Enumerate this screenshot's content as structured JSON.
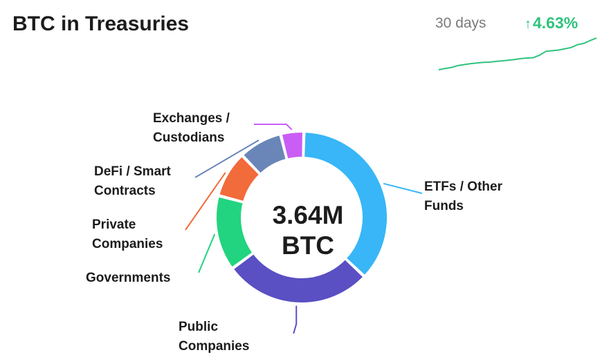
{
  "header": {
    "title": "BTC in Treasuries",
    "period": "30 days",
    "change_arrow": "↑",
    "change_value": "4.63%"
  },
  "colors": {
    "positive": "#2fc27d"
  },
  "sparkline": {
    "values": [
      0,
      0.04,
      0.07,
      0.13,
      0.16,
      0.19,
      0.21,
      0.23,
      0.24,
      0.26,
      0.28,
      0.3,
      0.32,
      0.35,
      0.37,
      0.38,
      0.46,
      0.58,
      0.6,
      0.62,
      0.66,
      0.7,
      0.79,
      0.83,
      0.92,
      1.0
    ]
  },
  "chart_data": {
    "type": "pie",
    "center_value": "3.64M",
    "center_unit": "BTC",
    "slices": [
      {
        "label_lines": [
          "ETFs / Other",
          "Funds"
        ],
        "value": 0.335,
        "color": "#38b6f7"
      },
      {
        "label_lines": [
          "Public",
          "Companies"
        ],
        "value": 0.255,
        "color": "#5a4fc3"
      },
      {
        "label_lines": [
          "Governments"
        ],
        "value": 0.13,
        "color": "#22d47f"
      },
      {
        "label_lines": [
          "Private",
          "Companies"
        ],
        "value": 0.08,
        "color": "#f26b3a"
      },
      {
        "label_lines": [
          "DeFi / Smart",
          "Contracts"
        ],
        "value": 0.075,
        "color": "#6a86b8"
      },
      {
        "label_lines": [
          "Exchanges /",
          "Custodians"
        ],
        "value": 0.04,
        "color": "#c95df5"
      }
    ]
  }
}
